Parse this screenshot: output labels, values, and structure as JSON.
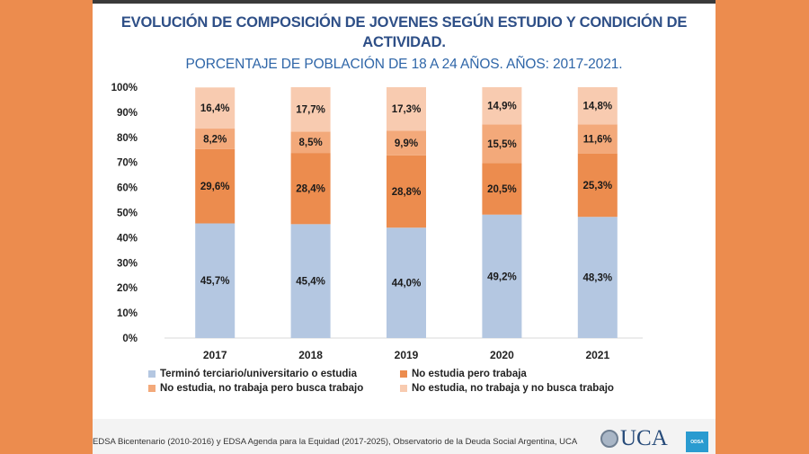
{
  "colors": {
    "side_band": "#ec8c4e",
    "title": "#2e4f87",
    "subtitle": "#2f66a8"
  },
  "chart_data": {
    "type": "bar",
    "stacked": true,
    "title": "EVOLUCIÓN DE COMPOSICIÓN DE JOVENES SEGÚN ESTUDIO Y CONDICIÓN DE ACTIVIDAD.",
    "subtitle": "PORCENTAJE DE POBLACIÓN DE 18 A 24 AÑOS. AÑOS: 2017-2021.",
    "xlabel": "",
    "ylabel": "",
    "ylim": [
      0,
      100
    ],
    "yticks": [
      0,
      10,
      20,
      30,
      40,
      50,
      60,
      70,
      80,
      90,
      100
    ],
    "ytick_labels": [
      "0%",
      "10%",
      "20%",
      "30%",
      "40%",
      "50%",
      "60%",
      "70%",
      "80%",
      "90%",
      "100%"
    ],
    "grid": false,
    "legend_position": "bottom",
    "categories": [
      "2017",
      "2018",
      "2019",
      "2020",
      "2021"
    ],
    "series": [
      {
        "name": "Terminó terciario/universitario o estudia",
        "color": "#b4c7e1",
        "values": [
          45.7,
          45.4,
          44.0,
          49.2,
          48.3
        ],
        "labels": [
          "45,7%",
          "45,4%",
          "44,0%",
          "49,2%",
          "48,3%"
        ]
      },
      {
        "name": "No estudia pero trabaja",
        "color": "#ec8c4e",
        "values": [
          29.6,
          28.4,
          28.8,
          20.5,
          25.3
        ],
        "labels": [
          "29,6%",
          "28,4%",
          "28,8%",
          "20,5%",
          "25,3%"
        ]
      },
      {
        "name": "No estudia, no trabaja pero busca trabajo",
        "color": "#f3a97a",
        "values": [
          8.2,
          8.5,
          9.9,
          15.5,
          11.6
        ],
        "labels": [
          "8,2%",
          "8,5%",
          "9,9%",
          "15,5%",
          "11,6%"
        ]
      },
      {
        "name": "No estudia, no trabaja y no busca trabajo",
        "color": "#f8cbb0",
        "values": [
          16.4,
          17.7,
          17.3,
          14.9,
          14.8
        ],
        "labels": [
          "16,4%",
          "17,7%",
          "17,3%",
          "14,9%",
          "14,8%"
        ]
      }
    ]
  },
  "header": {
    "title_line1": "EVOLUCIÓN DE COMPOSICIÓN DE JOVENES SEGÚN ESTUDIO Y CONDICIÓN DE",
    "title_line2": "ACTIVIDAD.",
    "subtitle": "PORCENTAJE DE POBLACIÓN DE 18 A 24 AÑOS. AÑOS: 2017-2021."
  },
  "legend": {
    "items": [
      {
        "label": "Terminó terciario/universitario o estudia",
        "color": "#b4c7e1"
      },
      {
        "label": "No estudia pero trabaja",
        "color": "#ec8c4e"
      },
      {
        "label": "No estudia, no trabaja pero busca trabajo",
        "color": "#f3a97a"
      },
      {
        "label": "No estudia, no trabaja y no busca trabajo",
        "color": "#f8cbb0"
      }
    ]
  },
  "footer": {
    "source": "EDSA Bicentenario (2010-2016) y EDSA Agenda para la Equidad (2017-2025), Observatorio de la Deuda Social Argentina, UCA",
    "logo_text": "UCA",
    "badge_text": "ODSA"
  }
}
